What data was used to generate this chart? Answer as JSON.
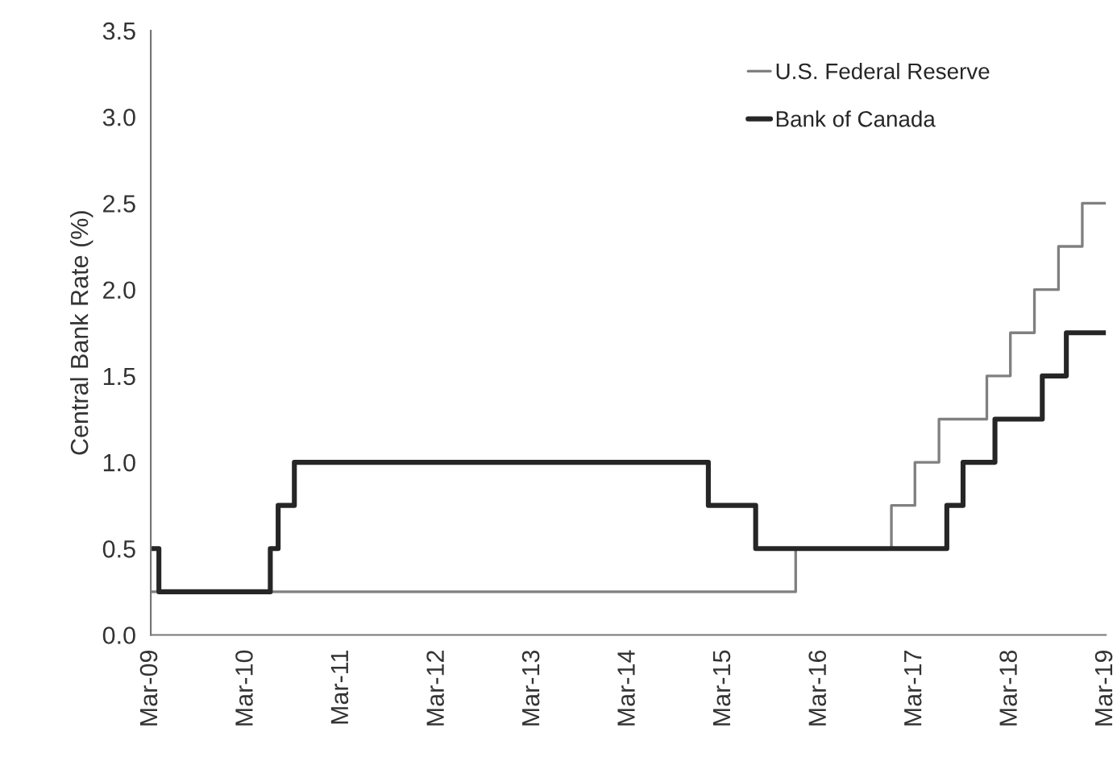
{
  "chart_data": {
    "type": "step",
    "ylabel": "Central Bank Rate (%)",
    "series": [
      {
        "name": "U.S. Federal Reserve",
        "color": "#808080",
        "x": [
          "2009-03",
          "2015-12",
          "2016-12",
          "2017-03",
          "2017-06",
          "2017-12",
          "2018-03",
          "2018-06",
          "2018-09",
          "2018-12",
          "2019-03"
        ],
        "values": [
          0.25,
          0.5,
          0.75,
          1.0,
          1.25,
          1.5,
          1.75,
          2.0,
          2.25,
          2.5,
          2.5
        ]
      },
      {
        "name": "Bank of Canada",
        "color": "#262626",
        "x": [
          "2009-03",
          "2009-04",
          "2010-06",
          "2010-07",
          "2010-09",
          "2015-01",
          "2015-07",
          "2017-07",
          "2017-09",
          "2018-01",
          "2018-07",
          "2018-10",
          "2019-03"
        ],
        "values": [
          0.5,
          0.25,
          0.5,
          0.75,
          1.0,
          0.75,
          0.5,
          0.75,
          1.0,
          1.25,
          1.5,
          1.75,
          1.75
        ]
      }
    ],
    "xlim": [
      "2009-03",
      "2019-03"
    ],
    "xticks": [
      {
        "value": "2009-03",
        "label": "Mar-09"
      },
      {
        "value": "2010-03",
        "label": "Mar-10"
      },
      {
        "value": "2011-03",
        "label": "Mar-11"
      },
      {
        "value": "2012-03",
        "label": "Mar-12"
      },
      {
        "value": "2013-03",
        "label": "Mar-13"
      },
      {
        "value": "2014-03",
        "label": "Mar-14"
      },
      {
        "value": "2015-03",
        "label": "Mar-15"
      },
      {
        "value": "2016-03",
        "label": "Mar-16"
      },
      {
        "value": "2017-03",
        "label": "Mar-17"
      },
      {
        "value": "2018-03",
        "label": "Mar-18"
      },
      {
        "value": "2019-03",
        "label": "Mar-19"
      }
    ],
    "ylim": [
      0,
      3.5
    ],
    "yticks": [
      {
        "value": 0,
        "label": "0.0"
      },
      {
        "value": 0.5,
        "label": "0.5"
      },
      {
        "value": 1.0,
        "label": "1.0"
      },
      {
        "value": 1.5,
        "label": "1.5"
      },
      {
        "value": 2.0,
        "label": "2.0"
      },
      {
        "value": 2.5,
        "label": "2.5"
      },
      {
        "value": 3.0,
        "label": "3.0"
      },
      {
        "value": 3.5,
        "label": "3.5"
      }
    ],
    "grid": false,
    "legend": "top right",
    "marker": "none",
    "line_style": "solid"
  }
}
